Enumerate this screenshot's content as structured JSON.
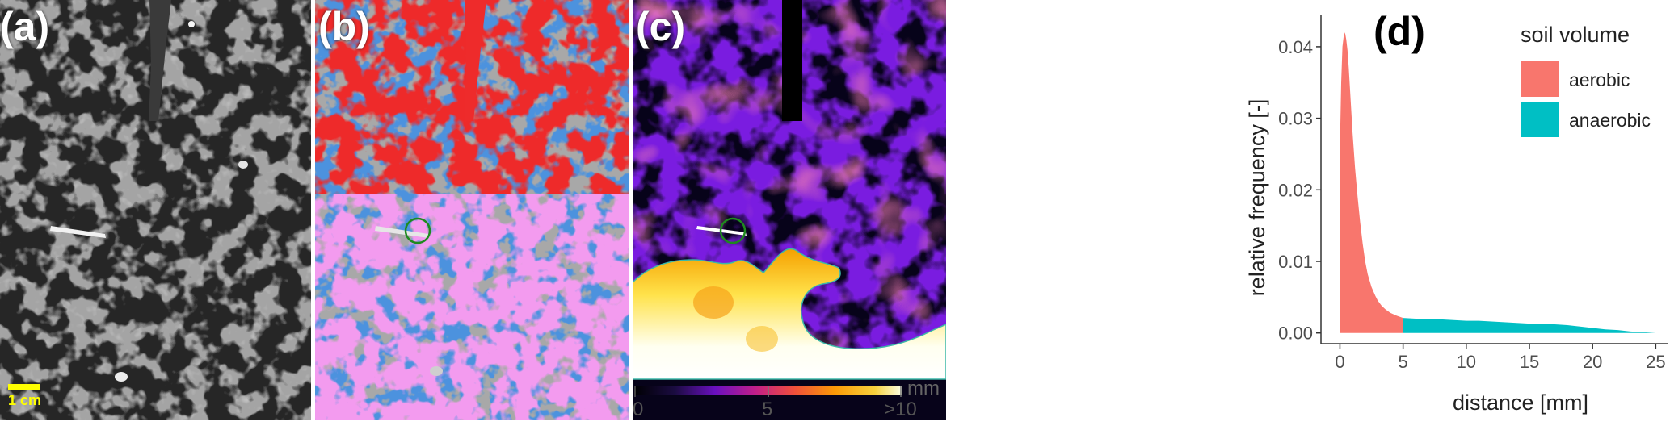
{
  "panels": {
    "a": {
      "label": "(a)",
      "scale_bar_label": "1 cm"
    },
    "b": {
      "label": "(b)"
    },
    "c": {
      "label": "(c)",
      "colorbar": {
        "unit": "mm",
        "ticks": [
          "0",
          "5",
          ">10"
        ]
      }
    },
    "d": {
      "label": "(d)"
    }
  },
  "colors": {
    "aerobic": "#F8766D",
    "anaerobic": "#00BFC4",
    "pore_red": "#EE2B2B",
    "pore_blue": "#3C8FE8",
    "pore_pink": "#F39BEF",
    "matrix_gray": "#A8A8A8",
    "scale_bar": "#FFFF00",
    "circle": "#1E8A1E"
  },
  "chart_data": {
    "type": "area",
    "title": "",
    "xlabel": "distance [mm]",
    "ylabel": "relative frequency [-]",
    "xlim": [
      -1.5,
      26
    ],
    "ylim": [
      -0.0015,
      0.0445
    ],
    "x_ticks": [
      0,
      5,
      10,
      15,
      20,
      25
    ],
    "x_tick_labels": [
      "0",
      "5",
      "10",
      "15",
      "20",
      "25"
    ],
    "y_ticks": [
      0,
      0.01,
      0.02,
      0.03,
      0.04
    ],
    "y_tick_labels": [
      "0.00",
      "0.01",
      "0.02",
      "0.03",
      "0.04"
    ],
    "grid": false,
    "legend": {
      "title": "soil volume",
      "placement": "right"
    },
    "series": [
      {
        "name": "aerobic",
        "color": "#F8766D",
        "x": [
          0,
          0.1,
          0.2,
          0.3,
          0.4,
          0.5,
          0.6,
          0.7,
          0.8,
          0.9,
          1.0,
          1.2,
          1.4,
          1.6,
          1.8,
          2.0,
          2.2,
          2.5,
          2.8,
          3.0,
          3.3,
          3.6,
          4.0,
          4.5,
          5.0
        ],
        "y": [
          0.026,
          0.035,
          0.04,
          0.0415,
          0.042,
          0.041,
          0.0395,
          0.037,
          0.034,
          0.031,
          0.028,
          0.023,
          0.019,
          0.0155,
          0.0125,
          0.01,
          0.0082,
          0.0064,
          0.0052,
          0.0045,
          0.0038,
          0.0033,
          0.0028,
          0.0024,
          0.0021
        ]
      },
      {
        "name": "anaerobic",
        "color": "#00BFC4",
        "x": [
          5.0,
          6.0,
          7.0,
          8.0,
          9.0,
          10.0,
          11.0,
          12.0,
          13.0,
          14.0,
          15.0,
          16.0,
          17.0,
          18.0,
          19.0,
          20.0,
          21.0,
          22.0,
          23.0,
          24.0,
          25.0
        ],
        "y": [
          0.0021,
          0.002,
          0.0019,
          0.0019,
          0.0018,
          0.0017,
          0.0017,
          0.0016,
          0.0015,
          0.0014,
          0.0013,
          0.0012,
          0.0012,
          0.0011,
          0.0009,
          0.0007,
          0.0005,
          0.0004,
          0.0002,
          0.0001,
          0.0
        ]
      }
    ]
  }
}
